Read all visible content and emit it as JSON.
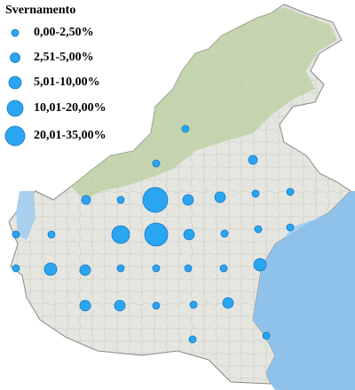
{
  "legend": {
    "title": "Svernamento",
    "items": [
      "0,00-2,50%",
      "2,51-5,00%",
      "5,01-10,00%",
      "10,01-20,00%",
      "20,01-35,00%"
    ]
  }
}
